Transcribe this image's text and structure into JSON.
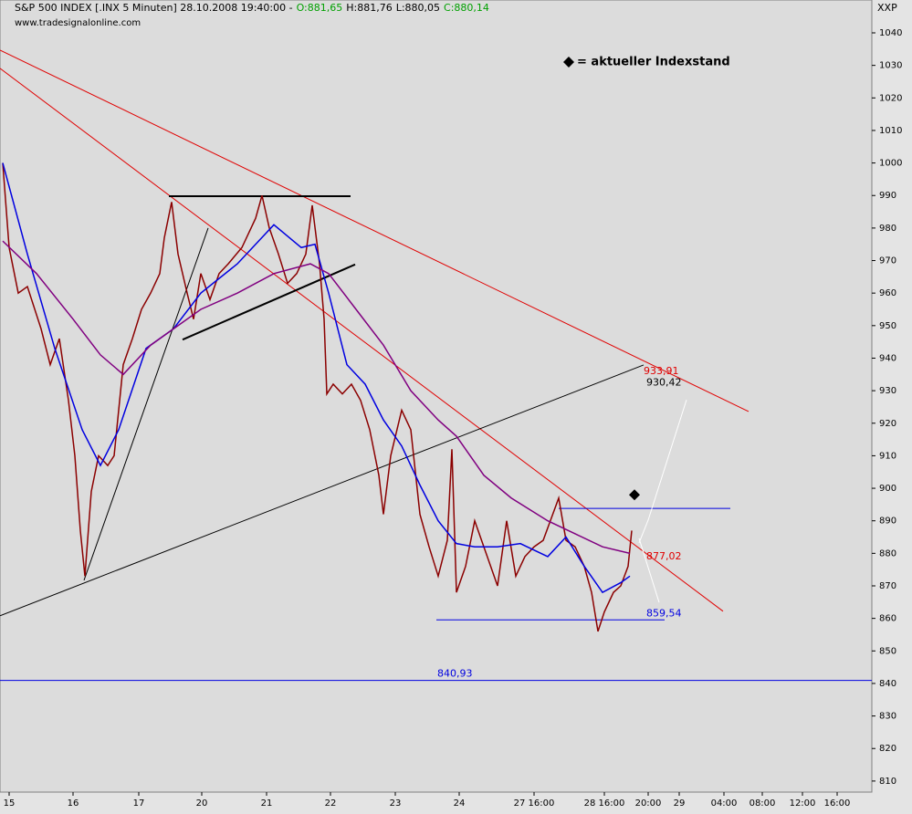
{
  "chart_data": {
    "type": "line",
    "title": "S&P 500 INDEX [.INX  5 Minuten] 28.10.2008 19:40:00 -",
    "ohlc_labels": [
      {
        "text": "O:881,65",
        "color": "#00a000"
      },
      {
        "text": "H:881,76",
        "color": "#000000"
      },
      {
        "text": "L:880,05",
        "color": "#000000"
      },
      {
        "text": "C:880,14",
        "color": "#00a000"
      }
    ],
    "source": "www.tradesignalonline.com",
    "symbol_label": "XXP",
    "legend_text": "= aktueller Indexstand",
    "marker": {
      "x": 139,
      "value": 898
    },
    "xlim": [
      0,
      191
    ],
    "ylim": [
      806.6,
      1050.1
    ],
    "yticks": [
      810,
      820,
      830,
      840,
      850,
      860,
      870,
      880,
      890,
      900,
      910,
      920,
      930,
      940,
      950,
      960,
      970,
      980,
      990,
      1000,
      1010,
      1020,
      1030,
      1040
    ],
    "xticks": [
      {
        "value": 2,
        "label": "15"
      },
      {
        "value": 16,
        "label": "16"
      },
      {
        "value": 30.4,
        "label": "17"
      },
      {
        "value": 44.2,
        "label": "20"
      },
      {
        "value": 58.4,
        "label": "21"
      },
      {
        "value": 72.4,
        "label": "22"
      },
      {
        "value": 86.6,
        "label": "23"
      },
      {
        "value": 100.6,
        "label": "24"
      },
      {
        "value": 117,
        "label": "27 16:00"
      },
      {
        "value": 132.4,
        "label": "28 16:00"
      },
      {
        "value": 142,
        "label": "20:00"
      },
      {
        "value": 148.8,
        "label": "29"
      },
      {
        "value": 158.6,
        "label": "04:00"
      },
      {
        "value": 167,
        "label": "08:00"
      },
      {
        "value": 175.8,
        "label": "12:00"
      },
      {
        "value": 183.4,
        "label": "16:00"
      }
    ],
    "series": [
      {
        "color": "#8b0000",
        "x": [
          0.6,
          2,
          4,
          6,
          9,
          11,
          13,
          15,
          16.4,
          17.6,
          18.6,
          20,
          21.6,
          23.6,
          25,
          27,
          29,
          31,
          33,
          35,
          36,
          37.6,
          39,
          41,
          42.4,
          44,
          46,
          48,
          50,
          53,
          56,
          57.4,
          59,
          61,
          63,
          65,
          67,
          68.4,
          70,
          71,
          71.6,
          73,
          75,
          77,
          79,
          81,
          83,
          84,
          85.6,
          88,
          90,
          92,
          94,
          96,
          98,
          99,
          100,
          102,
          104,
          106,
          109,
          111,
          113,
          115,
          117,
          119,
          122.4,
          124,
          126,
          128,
          129.6,
          131,
          132.4,
          134.4,
          136,
          137.6,
          138.4
        ],
        "values": [
          1000,
          974,
          960,
          962,
          949,
          938,
          946,
          927,
          910,
          887,
          873,
          899,
          910,
          907,
          910,
          938,
          946,
          955,
          960,
          966,
          977,
          988,
          972,
          960,
          952,
          966,
          958,
          966,
          969,
          974,
          983,
          990,
          980,
          972,
          963,
          966,
          972,
          987,
          969,
          952,
          929,
          932,
          929,
          932,
          927,
          918,
          904,
          892,
          910,
          924,
          918,
          892,
          882,
          873,
          884,
          912,
          868,
          876,
          890,
          882,
          870,
          890,
          873,
          879,
          882,
          884,
          897,
          884,
          882,
          876,
          868,
          856,
          862,
          868,
          870,
          876,
          887
        ]
      },
      {
        "color": "#0000e0",
        "x": [
          0.6,
          6,
          12,
          18,
          22,
          26,
          32,
          38,
          44,
          52,
          60,
          66,
          69,
          72,
          76,
          80,
          84,
          88,
          92,
          96,
          100,
          104,
          109,
          114,
          120,
          124,
          128,
          132,
          136,
          138
        ],
        "values": [
          1000,
          972,
          943,
          918,
          907,
          918,
          943,
          949,
          960,
          969,
          981,
          974,
          975,
          960,
          938,
          932,
          921,
          913,
          901,
          890,
          883,
          882,
          882,
          883,
          879,
          885,
          876,
          868,
          871,
          873
        ]
      },
      {
        "color": "#800080",
        "x": [
          0.6,
          8,
          16,
          22,
          27,
          33,
          38,
          44,
          52,
          60,
          68,
          72,
          78,
          84,
          90,
          96,
          100,
          106,
          112,
          120,
          126,
          132,
          138
        ],
        "values": [
          976,
          966,
          952,
          941,
          935,
          944,
          949,
          955,
          960,
          966,
          969,
          966,
          955,
          944,
          930,
          921,
          916,
          904,
          897,
          890,
          886,
          882,
          880
        ]
      }
    ],
    "trendlines": [
      {
        "color": "#e00000",
        "x": [
          0,
          164
        ],
        "values": [
          1034.7,
          923.6
        ]
      },
      {
        "color": "#e00000",
        "x": [
          0,
          158.4
        ],
        "values": [
          1029.1,
          862.2
        ]
      },
      {
        "color": "#000000",
        "x": [
          0,
          141
        ],
        "values": [
          860.8,
          937.9
        ]
      },
      {
        "color": "#000000",
        "x": [
          37,
          76.8
        ],
        "values": [
          989.8,
          989.8
        ]
      },
      {
        "color": "#000000",
        "x": [
          40,
          77.8
        ],
        "values": [
          945.7,
          968.8
        ]
      },
      {
        "color": "#000000",
        "x": [
          18.4,
          45.6
        ],
        "values": [
          871.7,
          980
        ]
      },
      {
        "color": "#0000e0",
        "x": [
          0,
          191
        ],
        "values": [
          840.93,
          840.93
        ]
      },
      {
        "color": "#0000e0",
        "x": [
          95.6,
          145.6
        ],
        "values": [
          859.54,
          859.54
        ]
      },
      {
        "color": "#0000e0",
        "x": [
          122.4,
          160
        ],
        "values": [
          893.8,
          893.8
        ]
      },
      {
        "color": "#ffffff",
        "x": [
          140,
          142,
          150.4
        ],
        "values": [
          883.2,
          890.2,
          927.2
        ]
      },
      {
        "color": "#ffffff",
        "x": [
          140,
          144.4
        ],
        "values": [
          884.6,
          864.9
        ]
      }
    ],
    "price_labels": [
      {
        "label": "933,91",
        "value": 933.91,
        "x": 141,
        "color": "#e00000"
      },
      {
        "label": "930,42",
        "value": 930.42,
        "x": 141.6,
        "color": "#000000"
      },
      {
        "label": "877,02",
        "value": 877.02,
        "x": 141.6,
        "color": "#e00000"
      },
      {
        "label": "859,54",
        "value": 859.54,
        "x": 141.6,
        "color": "#0000e0"
      },
      {
        "label": "840,93",
        "value": 840.93,
        "x": 95.8,
        "color": "#0000e0"
      }
    ]
  }
}
